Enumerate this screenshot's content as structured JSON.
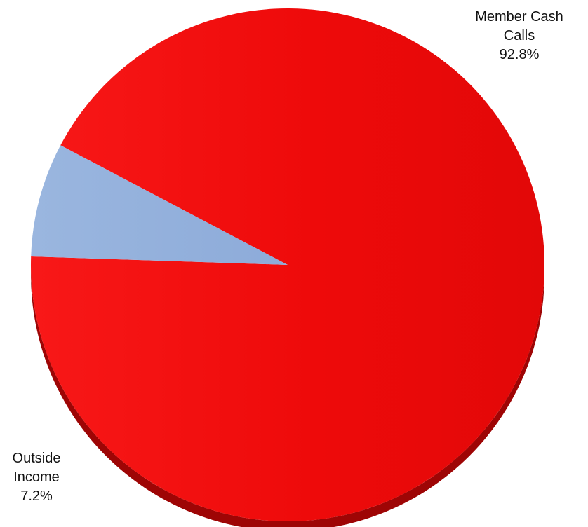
{
  "chart_data": {
    "type": "pie",
    "title": "",
    "slices": [
      {
        "name": "Member Cash Calls",
        "label_lines": [
          "Member Cash",
          "Calls"
        ],
        "percent_label": "92.8%",
        "value": 92.8,
        "color": "#f20c0c"
      },
      {
        "name": "Outside Income",
        "label_lines": [
          "Outside",
          "Income"
        ],
        "percent_label": "7.2%",
        "value": 7.2,
        "color": "#93b1de"
      }
    ],
    "legend": "none",
    "style": "3d-tilted"
  }
}
